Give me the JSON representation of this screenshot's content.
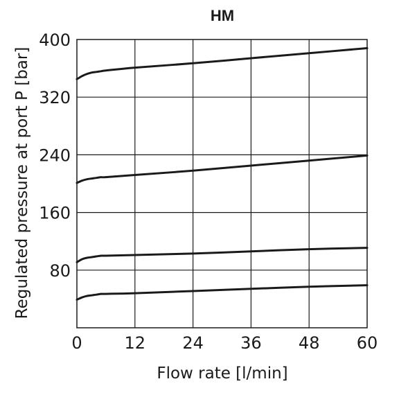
{
  "chart_data": {
    "type": "line",
    "title": "HM",
    "xlabel": "Flow rate [l/min]",
    "ylabel": "Regulated pressure at port P [bar]",
    "xlim": [
      0,
      60
    ],
    "ylim": [
      0,
      400
    ],
    "xticks": [
      0,
      12,
      24,
      36,
      48,
      60
    ],
    "yticks": [
      80,
      160,
      240,
      320,
      400
    ],
    "xtick_labels": [
      "0",
      "12",
      "24",
      "36",
      "48",
      "60"
    ],
    "ytick_labels": [
      "80",
      "160",
      "240",
      "320",
      "400"
    ],
    "grid": true,
    "series": [
      {
        "x": [
          0,
          1,
          2,
          3,
          4,
          5,
          6,
          12,
          24,
          36,
          48,
          60
        ],
        "values": [
          345,
          349,
          352,
          354,
          355,
          356,
          357,
          361,
          367,
          374,
          381,
          388
        ]
      },
      {
        "x": [
          0,
          1,
          2,
          3,
          4,
          5,
          6,
          12,
          24,
          36,
          48,
          60
        ],
        "values": [
          201,
          204,
          206,
          207,
          208,
          209,
          209,
          212,
          218,
          225,
          232,
          239
        ]
      },
      {
        "x": [
          0,
          1,
          2,
          3,
          4,
          5,
          6,
          12,
          24,
          36,
          48,
          60
        ],
        "values": [
          91,
          95,
          97,
          98,
          99,
          100,
          100,
          101,
          103,
          106,
          109,
          111
        ]
      },
      {
        "x": [
          0,
          1,
          2,
          3,
          4,
          5,
          6,
          12,
          24,
          36,
          48,
          60
        ],
        "values": [
          39,
          42,
          44,
          45,
          46,
          47,
          47,
          48,
          51,
          54,
          57,
          59
        ]
      }
    ]
  }
}
